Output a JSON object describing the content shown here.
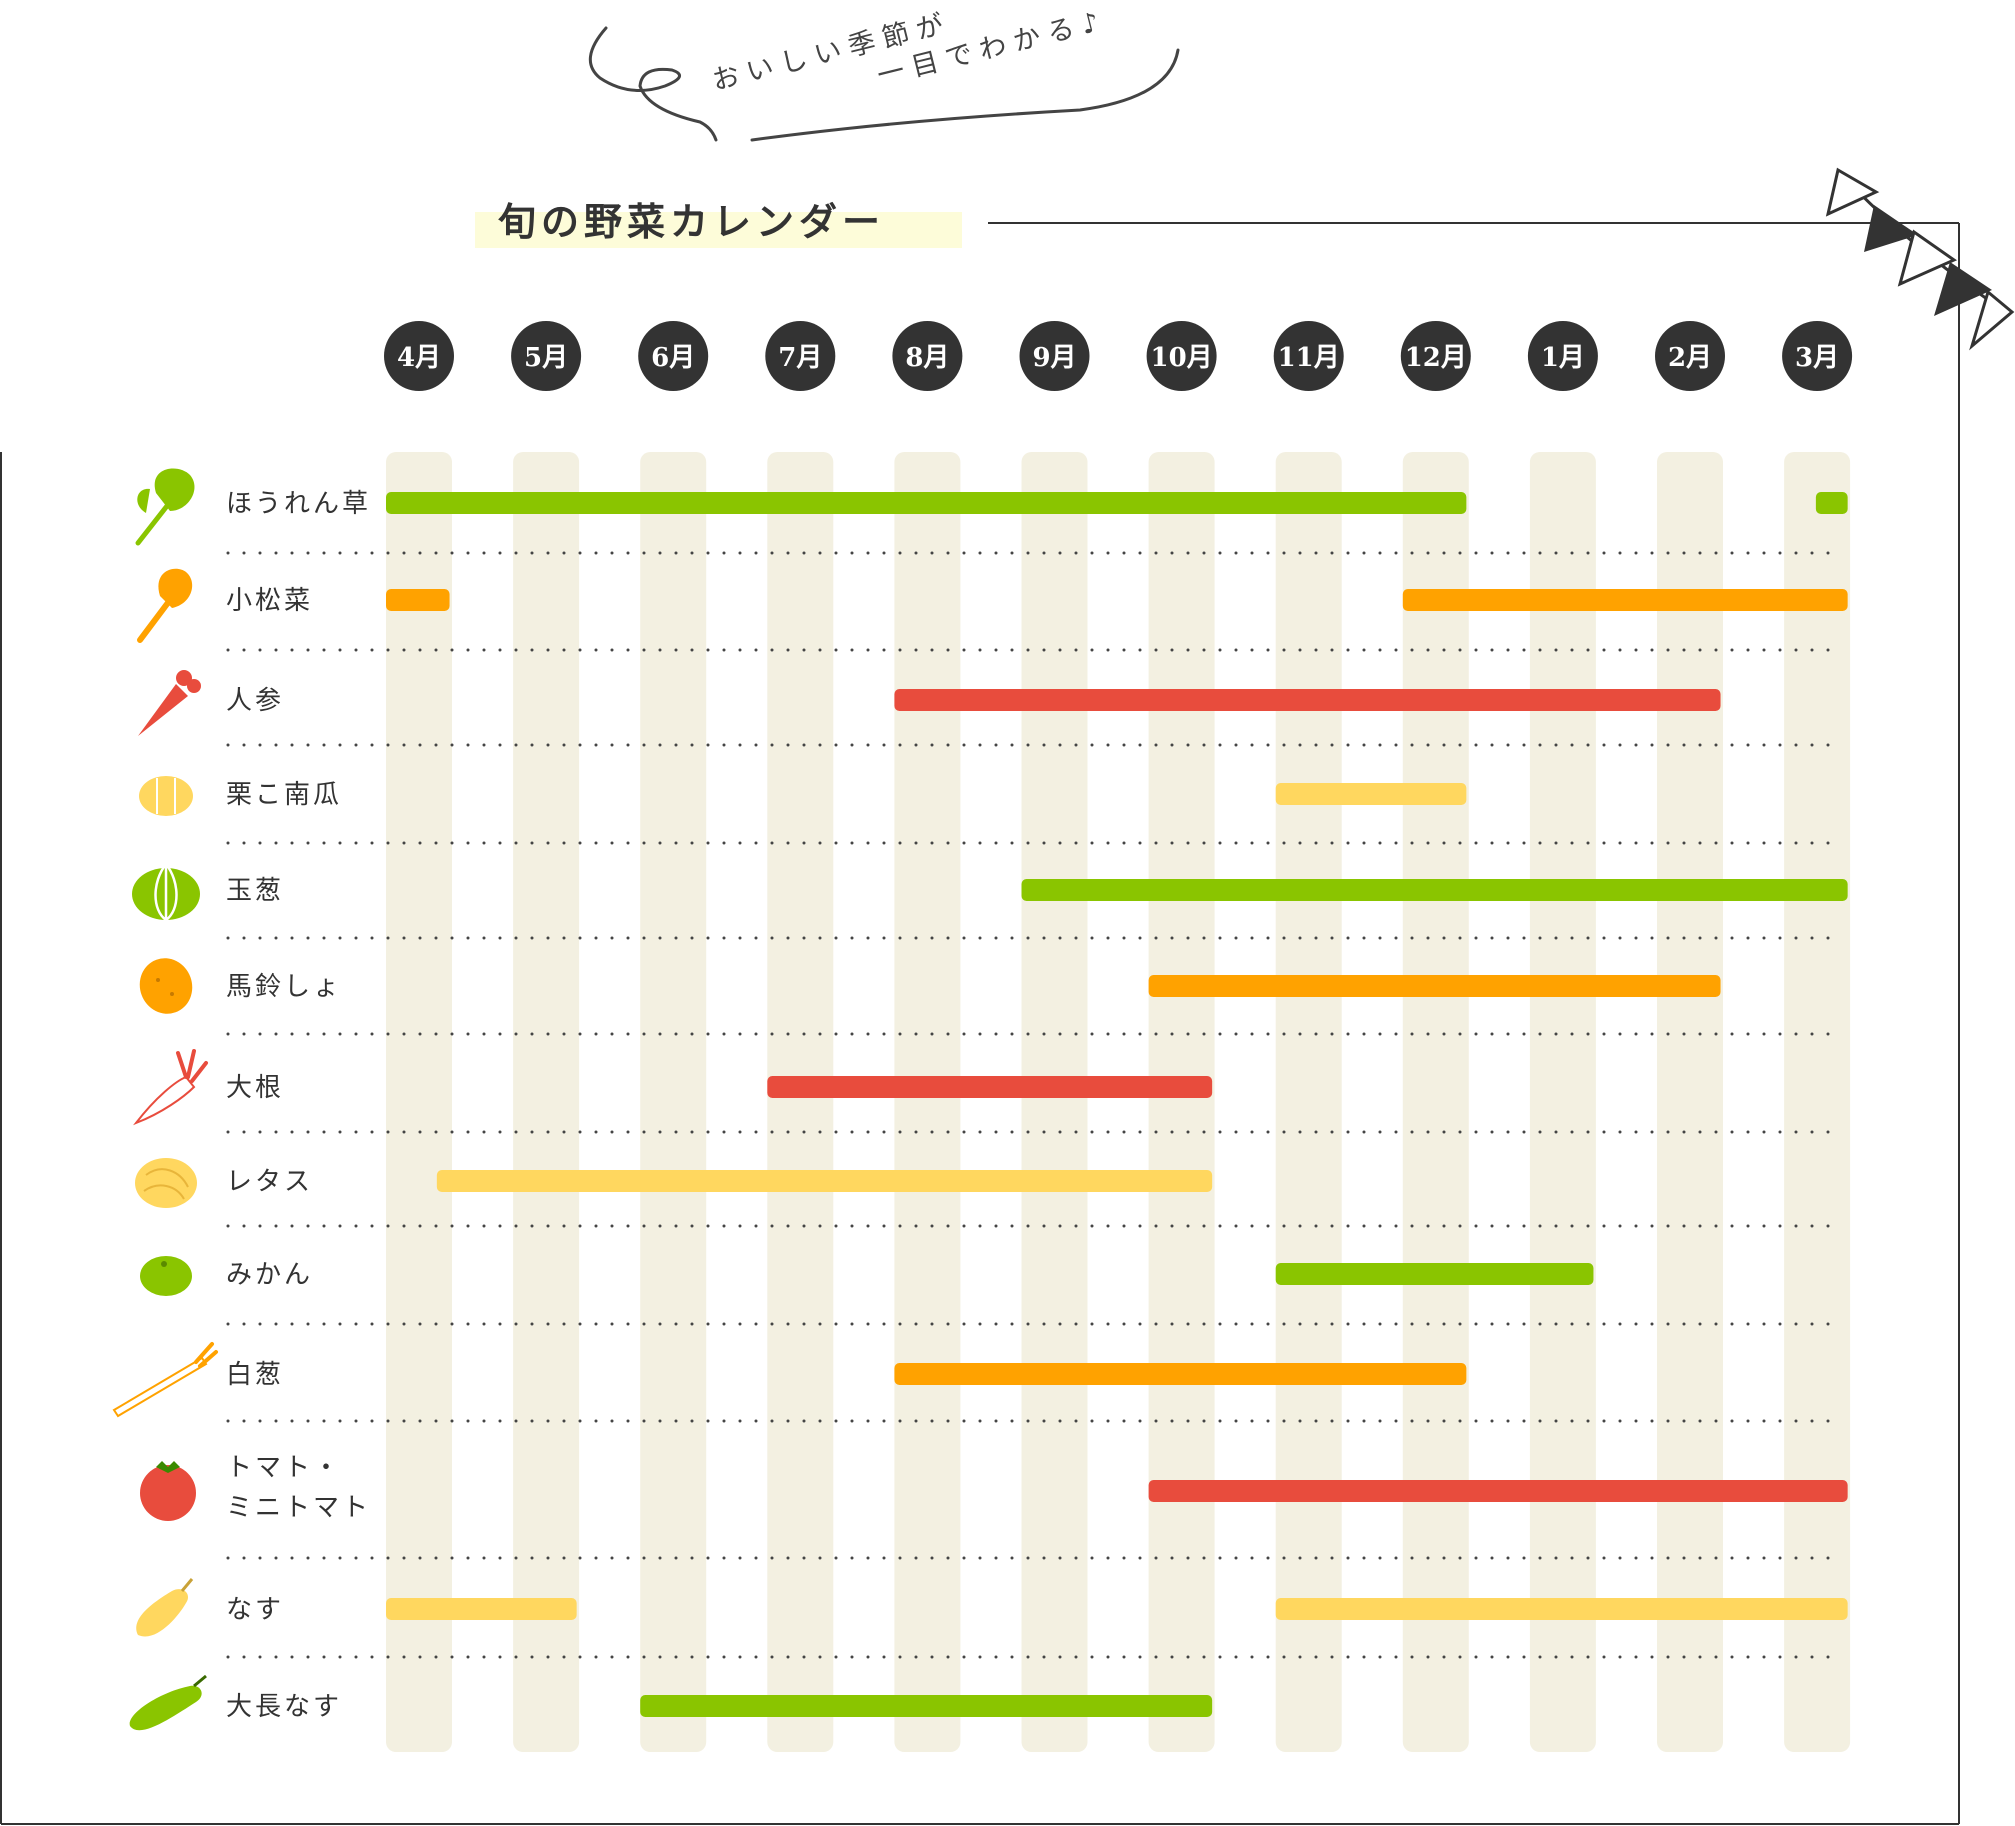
{
  "tagline": {
    "line1": "おいしい季節が",
    "line2": "一目でわかる♪"
  },
  "title": "旬の野菜カレンダー",
  "colors": {
    "green": "#8ac500",
    "orange": "#ffa200",
    "red": "#e84c3d",
    "yellow": "#ffd75f",
    "column_bg": "#f3f0e1",
    "month_circle": "#333333",
    "title_highlight": "#fdfcd9"
  },
  "chart_data": {
    "type": "gantt",
    "title": "旬の野菜カレンダー",
    "months": [
      "4月",
      "5月",
      "6月",
      "7月",
      "8月",
      "9月",
      "10月",
      "11月",
      "12月",
      "1月",
      "2月",
      "3月"
    ],
    "month_numbers": [
      "4",
      "5",
      "6",
      "7",
      "8",
      "9",
      "10",
      "11",
      "12",
      "1",
      "2",
      "3"
    ],
    "month_suffix": "月",
    "note": "segments use month index 0=April ... 11=March; start/end in months (fractional = mid-month)",
    "rows": [
      {
        "name": "ほうれん草",
        "icon": "spinach-icon",
        "color": "green",
        "segments": [
          [
            0,
            8.5
          ],
          [
            11.25,
            11.5
          ]
        ]
      },
      {
        "name": "小松菜",
        "icon": "komatsuna-icon",
        "color": "orange",
        "segments": [
          [
            0,
            0.5
          ],
          [
            8,
            11.5
          ]
        ]
      },
      {
        "name": "人参",
        "icon": "carrot-icon",
        "color": "red",
        "segments": [
          [
            4,
            10.5
          ]
        ]
      },
      {
        "name": "栗こ南瓜",
        "icon": "pumpkin-icon",
        "color": "yellow",
        "segments": [
          [
            7,
            8.5
          ]
        ]
      },
      {
        "name": "玉葱",
        "icon": "onion-icon",
        "color": "green",
        "segments": [
          [
            5,
            11.5
          ]
        ]
      },
      {
        "name": "馬鈴しょ",
        "icon": "potato-icon",
        "color": "orange",
        "segments": [
          [
            6,
            10.5
          ]
        ]
      },
      {
        "name": "大根",
        "icon": "daikon-icon",
        "color": "red",
        "segments": [
          [
            3,
            6.5
          ]
        ]
      },
      {
        "name": "レタス",
        "icon": "lettuce-icon",
        "color": "yellow",
        "segments": [
          [
            0.4,
            6.5
          ]
        ]
      },
      {
        "name": "みかん",
        "icon": "mikan-icon",
        "color": "green",
        "segments": [
          [
            7,
            9.5
          ]
        ]
      },
      {
        "name": "白葱",
        "icon": "leek-icon",
        "color": "orange",
        "segments": [
          [
            4,
            8.5
          ]
        ]
      },
      {
        "name": "トマト・ミニトマト",
        "label_lines": [
          "トマト・",
          "ミニトマト"
        ],
        "icon": "tomato-icon",
        "color": "red",
        "segments": [
          [
            6,
            11.5
          ]
        ]
      },
      {
        "name": "なす",
        "icon": "eggplant-icon",
        "color": "yellow",
        "segments": [
          [
            0,
            1.5
          ],
          [
            7,
            11.5
          ]
        ]
      },
      {
        "name": "大長なす",
        "icon": "long-eggplant-icon",
        "color": "green",
        "segments": [
          [
            2,
            6.5
          ]
        ]
      }
    ]
  }
}
